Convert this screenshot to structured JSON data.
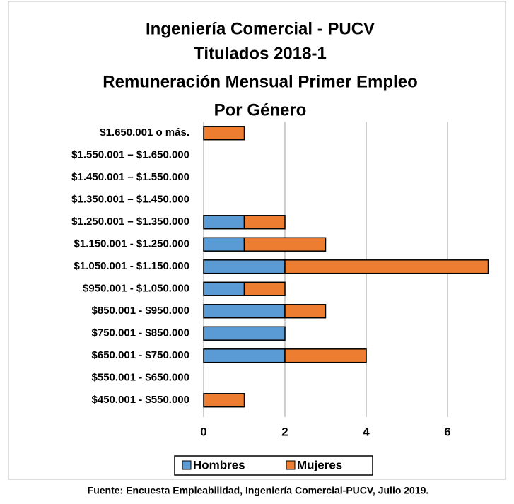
{
  "chart_data": {
    "type": "stacked-barh",
    "title": [
      "Ingeniería Comercial - PUCV",
      "Titulados 2018-1",
      "Remuneración Mensual Primer Empleo",
      "Por Género"
    ],
    "categories": [
      "$1.650.001 o más.",
      "$1.550.001 – $1.650.000",
      "$1.450.001 – $1.550.000",
      "$1.350.001 – $1.450.000",
      "$1.250.001 – $1.350.000",
      "$1.150.001 - $1.250.000",
      "$1.050.001 - $1.150.000",
      "$950.001 - $1.050.000",
      "$850.001 - $950.000",
      "$750.001 - $850.000",
      "$650.001 - $750.000",
      "$550.001 - $650.000",
      "$450.001 - $550.000"
    ],
    "series": [
      {
        "name": "Hombres",
        "color": "#5b9bd5",
        "values": [
          0,
          0,
          0,
          0,
          1,
          1,
          2,
          1,
          2,
          2,
          2,
          0,
          0
        ]
      },
      {
        "name": "Mujeres",
        "color": "#ed7d31",
        "values": [
          1,
          0,
          0,
          0,
          1,
          2,
          5,
          1,
          1,
          0,
          2,
          0,
          1
        ]
      }
    ],
    "xlim": [
      0,
      7
    ],
    "xticks": [
      0,
      2,
      4,
      6
    ],
    "grid": true,
    "legend": "bottom",
    "source": "Fuente: Encuesta Empleabilidad, Ingeniería Comercial-PUCV, Julio  2019."
  }
}
